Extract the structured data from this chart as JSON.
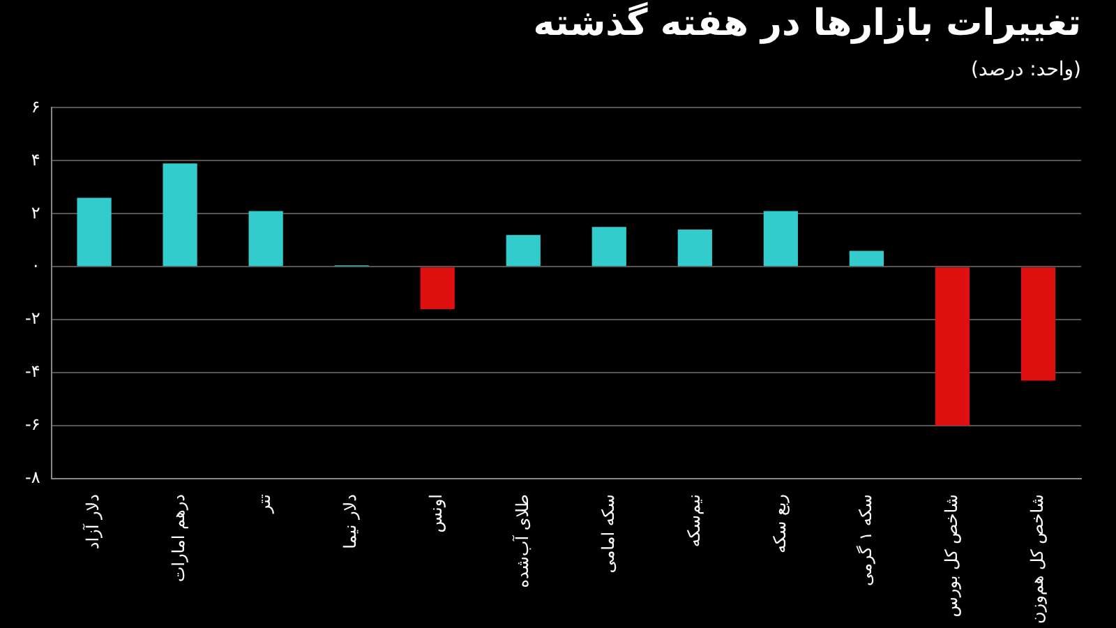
{
  "chart_data": {
    "type": "bar",
    "title": "تغییرات بازارها در هفته گذشته",
    "subtitle": "(واحد: درصد)",
    "categories": [
      "دلار آزاد",
      "درهم امارات",
      "تتر",
      "دلار نیما",
      "اونس",
      "طلای آب‌شده",
      "سکه امامی",
      "نیم‌سکه",
      "ربع سکه",
      "سکه ۱ گرمی",
      "شاخص کل بورس",
      "شاخص کل هم‌وزن"
    ],
    "values": [
      2.6,
      3.9,
      2.1,
      0.05,
      -1.6,
      1.2,
      1.5,
      1.4,
      2.1,
      0.6,
      -6.0,
      -4.3
    ],
    "colors": [
      "#33cccc",
      "#33cccc",
      "#33cccc",
      "#33cccc",
      "#e01010",
      "#33cccc",
      "#33cccc",
      "#33cccc",
      "#33cccc",
      "#33cccc",
      "#e01010",
      "#e01010"
    ],
    "ylim": [
      -8,
      6
    ],
    "yticks": [
      {
        "value": -8,
        "label": "-۸"
      },
      {
        "value": -6,
        "label": "-۶"
      },
      {
        "value": -4,
        "label": "-۴"
      },
      {
        "value": -2,
        "label": "-۲"
      },
      {
        "value": 0,
        "label": "۰"
      },
      {
        "value": 2,
        "label": "۲"
      },
      {
        "value": 4,
        "label": "۴"
      },
      {
        "value": 6,
        "label": "۶"
      }
    ],
    "grid": "y",
    "legend": false
  }
}
